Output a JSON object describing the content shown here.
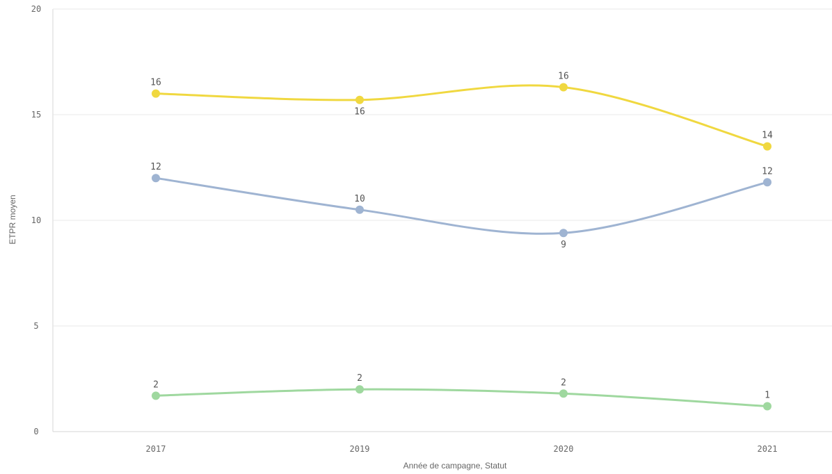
{
  "chart_data": {
    "type": "line",
    "xlabel": "Année de campagne, Statut",
    "ylabel": "ETPR moyen",
    "categories": [
      "2017",
      "2019",
      "2020",
      "2021"
    ],
    "ylim": [
      0,
      20
    ],
    "yticks": [
      0,
      5,
      10,
      15,
      20
    ],
    "grid": "horizontal",
    "smooth": true,
    "series": [
      {
        "color": "#f0d840",
        "values": [
          16.0,
          15.7,
          16.3,
          13.5
        ],
        "labels": [
          "16",
          "16",
          "16",
          "14"
        ],
        "label_pos": [
          "above",
          "below",
          "above",
          "above"
        ]
      },
      {
        "color": "#9fb4d2",
        "values": [
          12.0,
          10.5,
          9.4,
          11.8
        ],
        "labels": [
          "12",
          "10",
          "9",
          "12"
        ],
        "label_pos": [
          "above",
          "above",
          "below",
          "above"
        ]
      },
      {
        "color": "#9fd89f",
        "values": [
          1.7,
          2.0,
          1.8,
          1.2
        ],
        "labels": [
          "2",
          "2",
          "2",
          "1"
        ],
        "label_pos": [
          "above",
          "above",
          "above",
          "above"
        ]
      }
    ]
  }
}
